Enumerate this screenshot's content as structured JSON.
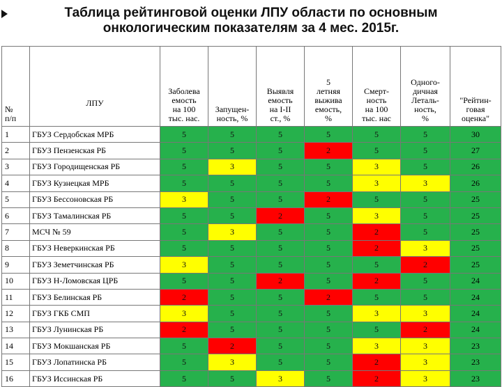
{
  "title": {
    "line1": "Таблица рейтинговой оценки ЛПУ области по основным",
    "line2": "онкологическим показателям за 4 мес. 2015г."
  },
  "headers": {
    "num": [
      "№",
      "п/п"
    ],
    "lpu": "ЛПУ",
    "cols": [
      [
        "Заболева",
        "емость",
        "на 100",
        "тыс. нас."
      ],
      [
        "Запущен-",
        "ность, %"
      ],
      [
        "Выявля",
        "емость",
        "на I-II",
        "ст., %"
      ],
      [
        "5",
        "летняя",
        "выжива",
        "емость,",
        "%"
      ],
      [
        "Смерт-",
        "ность",
        "на 100",
        "тыс. нас"
      ],
      [
        "Одного-",
        "дичная",
        "Леталь-",
        "ность,",
        "%"
      ],
      [
        "\"Рейтин-",
        "говая",
        "оценка\""
      ]
    ]
  },
  "colors": {
    "score5": "#26b14c",
    "score3": "#ffff00",
    "score2": "#ff0000"
  },
  "rows": [
    {
      "n": "1",
      "name": "ГБУЗ Сердобская МРБ",
      "scores": [
        5,
        5,
        5,
        5,
        5,
        5
      ],
      "total": "30"
    },
    {
      "n": "2",
      "name": "ГБУЗ Пензенская РБ",
      "scores": [
        5,
        5,
        5,
        2,
        5,
        5
      ],
      "total": "27"
    },
    {
      "n": "3",
      "name": "ГБУЗ Городищенская РБ",
      "scores": [
        5,
        3,
        5,
        5,
        3,
        5
      ],
      "total": "26"
    },
    {
      "n": "4",
      "name": "ГБУЗ Кузнецкая МРБ",
      "scores": [
        5,
        5,
        5,
        5,
        3,
        3
      ],
      "total": "26"
    },
    {
      "n": "5",
      "name": "ГБУЗ Бессоновская РБ",
      "scores": [
        3,
        5,
        5,
        2,
        5,
        5
      ],
      "total": "25"
    },
    {
      "n": "6",
      "name": "ГБУЗ Тамалинская РБ",
      "scores": [
        5,
        5,
        2,
        5,
        3,
        5
      ],
      "total": "25"
    },
    {
      "n": "7",
      "name": "МСЧ № 59",
      "scores": [
        5,
        3,
        5,
        5,
        2,
        5
      ],
      "total": "25"
    },
    {
      "n": "8",
      "name": "ГБУЗ Неверкинская РБ",
      "scores": [
        5,
        5,
        5,
        5,
        2,
        3
      ],
      "total": "25"
    },
    {
      "n": "9",
      "name": "ГБУЗ Земетчинская РБ",
      "scores": [
        3,
        5,
        5,
        5,
        5,
        2
      ],
      "total": "25"
    },
    {
      "n": "10",
      "name": "ГБУЗ Н-Ломовская ЦРБ",
      "scores": [
        5,
        5,
        2,
        5,
        2,
        5
      ],
      "total": "24"
    },
    {
      "n": "11",
      "name": "ГБУЗ Белинская РБ",
      "scores": [
        2,
        5,
        5,
        2,
        5,
        5
      ],
      "total": "24"
    },
    {
      "n": "12",
      "name": "ГБУЗ ГКБ СМП",
      "scores": [
        3,
        5,
        5,
        5,
        3,
        3
      ],
      "total": "24"
    },
    {
      "n": "13",
      "name": "ГБУЗ Лунинская РБ",
      "scores": [
        2,
        5,
        5,
        5,
        5,
        2
      ],
      "total": "24"
    },
    {
      "n": "14",
      "name": "ГБУЗ Мокшанская РБ",
      "scores": [
        5,
        2,
        5,
        5,
        3,
        3
      ],
      "total": "23"
    },
    {
      "n": "15",
      "name": "ГБУЗ Лопатинска РБ",
      "scores": [
        5,
        3,
        5,
        5,
        2,
        3
      ],
      "total": "23"
    },
    {
      "n": "16",
      "name": "ГБУЗ Иссинская РБ",
      "scores": [
        5,
        5,
        3,
        5,
        2,
        3
      ],
      "total": "23"
    }
  ]
}
